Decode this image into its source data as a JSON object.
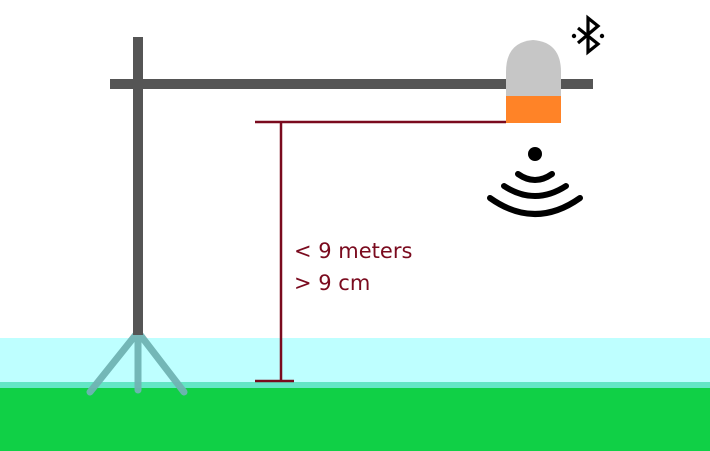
{
  "diagram": {
    "labels": {
      "max_distance": "< 9 meters",
      "min_distance": "> 9 cm"
    },
    "icons": {
      "bluetooth": "bluetooth-icon",
      "wireless_signal": "wireless-signal-icon"
    },
    "colors": {
      "background": "#ffffff",
      "water": "#beffff",
      "water_edge": "#63e6c5",
      "grass": "#10d046",
      "pole": "#555555",
      "tripod": "#6fb4b4",
      "sensor_body": "#c6c6c6",
      "sensor_band": "#ff8327",
      "dimension_line": "#7a0a1e",
      "icon": "#000000"
    }
  }
}
